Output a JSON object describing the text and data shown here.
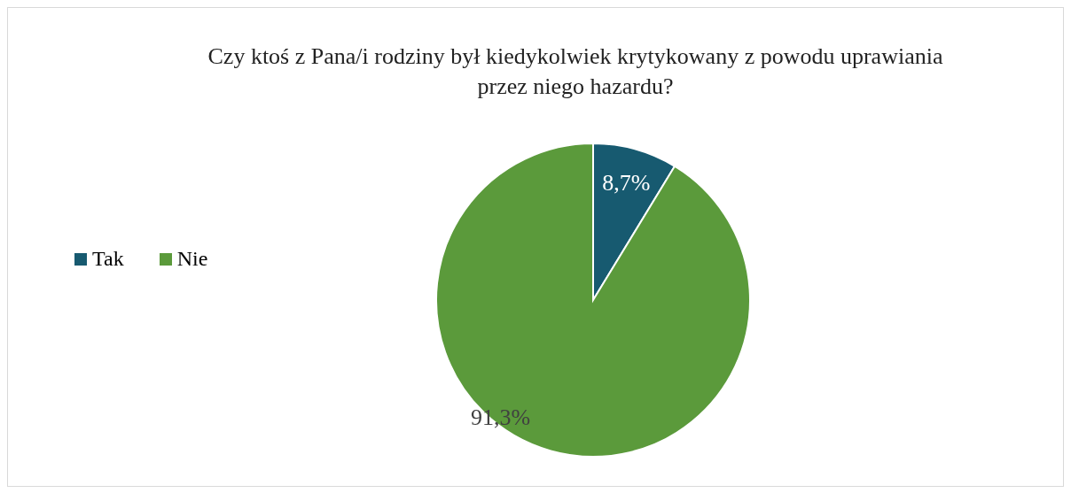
{
  "chart_data": {
    "type": "pie",
    "title": "Czy ktoś z Pana/i rodziny był kiedykolwiek krytykowany z powodu uprawiania przez niego hazardu?",
    "categories": [
      "Tak",
      "Nie"
    ],
    "values": [
      8.7,
      91.3
    ],
    "colors": [
      "#175a70",
      "#5b9a3b"
    ],
    "value_labels": [
      "8,7%",
      "91,3%"
    ],
    "legend": "left"
  }
}
